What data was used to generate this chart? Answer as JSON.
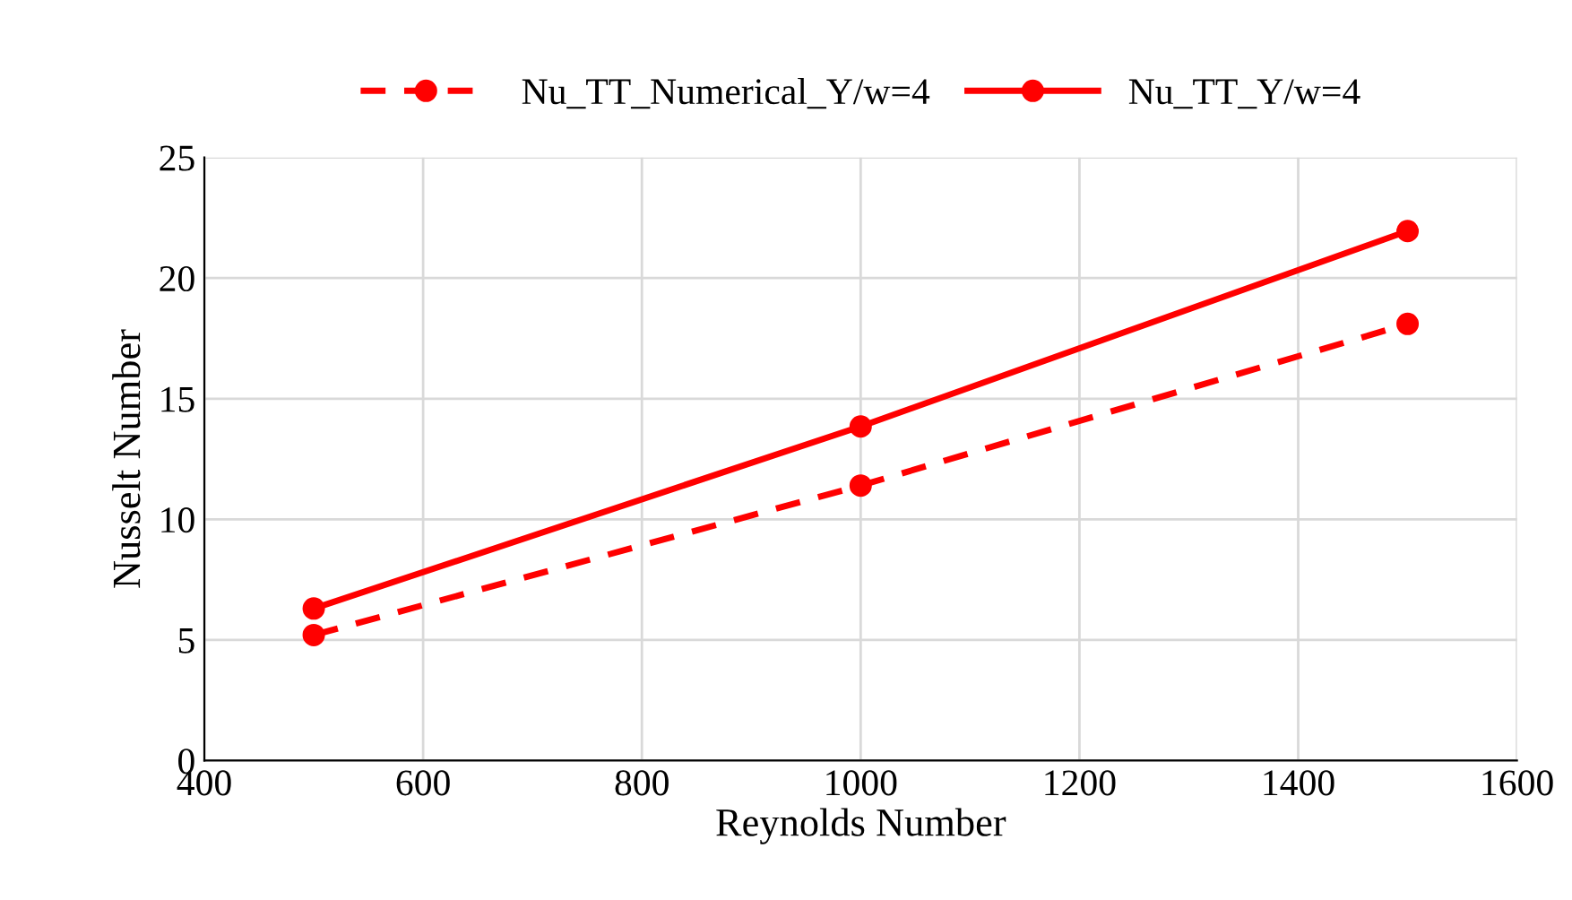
{
  "chart_data": {
    "type": "line",
    "xlabel": "Reynolds Number",
    "ylabel": "Nusselt Number",
    "x": [
      500,
      1000,
      1500
    ],
    "series": [
      {
        "name": "Nu_TT_Numerical_Y/w=4",
        "color": "#ff0000",
        "line_style": "dashed",
        "values": [
          5.2,
          11.4,
          18.1
        ]
      },
      {
        "name": "Nu_TT_Y/w=4",
        "color": "#ff0000",
        "line_style": "solid",
        "values": [
          6.3,
          13.85,
          21.95
        ]
      }
    ],
    "xlim": [
      400,
      1600
    ],
    "xticks": [
      400,
      600,
      800,
      1000,
      1200,
      1400,
      1600
    ],
    "ylim": [
      0,
      25
    ],
    "yticks": [
      0,
      5,
      10,
      15,
      20,
      25
    ],
    "grid": true,
    "legend": "top",
    "marker": "circle"
  }
}
